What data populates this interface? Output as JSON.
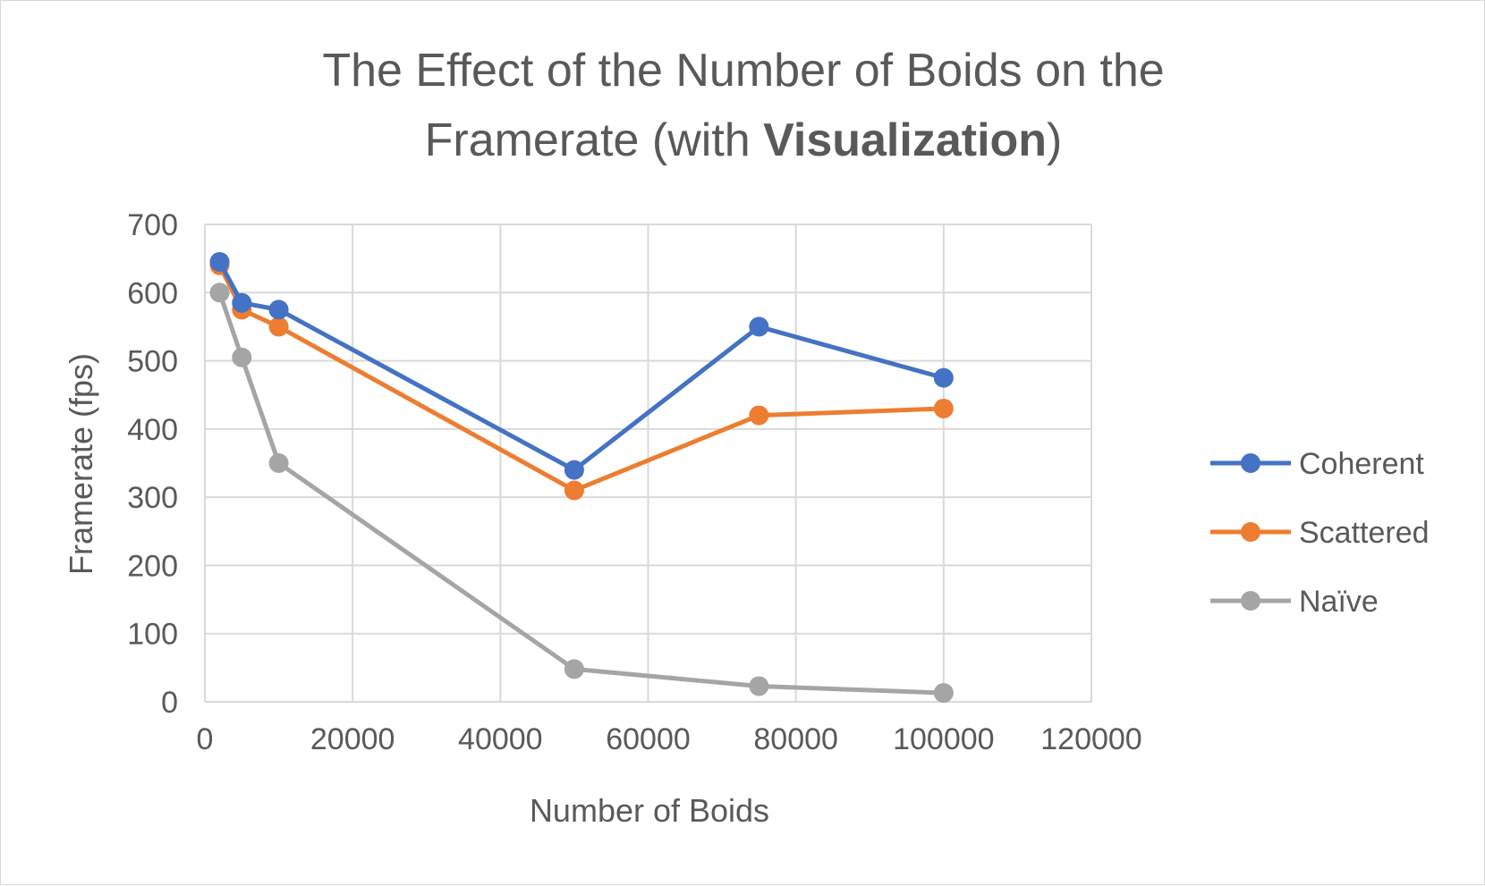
{
  "chart_data": {
    "type": "line",
    "title": {
      "line1": "The Effect of the Number of Boids on the",
      "line2_prefix": "Framerate (with ",
      "line2_bold": "Visualization",
      "line2_suffix": ")"
    },
    "xlabel": "Number of Boids",
    "ylabel": "Framerate (fps)",
    "xlim": [
      0,
      120000
    ],
    "ylim": [
      0,
      700
    ],
    "x_ticks": [
      0,
      20000,
      40000,
      60000,
      80000,
      100000,
      120000
    ],
    "x_tick_labels": [
      "0",
      "20000",
      "40000",
      "60000",
      "80000",
      "100000",
      "120000"
    ],
    "y_ticks": [
      0,
      100,
      200,
      300,
      400,
      500,
      600,
      700
    ],
    "y_tick_labels": [
      "0",
      "100",
      "200",
      "300",
      "400",
      "500",
      "600",
      "700"
    ],
    "grid": true,
    "legend_position": "right",
    "x": [
      2000,
      5000,
      10000,
      50000,
      75000,
      100000
    ],
    "series": [
      {
        "name": "Coherent",
        "color": "#4472c4",
        "values": [
          645,
          585,
          575,
          340,
          550,
          475
        ]
      },
      {
        "name": "Scattered",
        "color": "#ed7d31",
        "values": [
          640,
          575,
          550,
          310,
          420,
          430
        ]
      },
      {
        "name": "Naïve",
        "color": "#a5a5a5",
        "values": [
          600,
          505,
          350,
          48,
          23,
          13
        ]
      }
    ]
  }
}
